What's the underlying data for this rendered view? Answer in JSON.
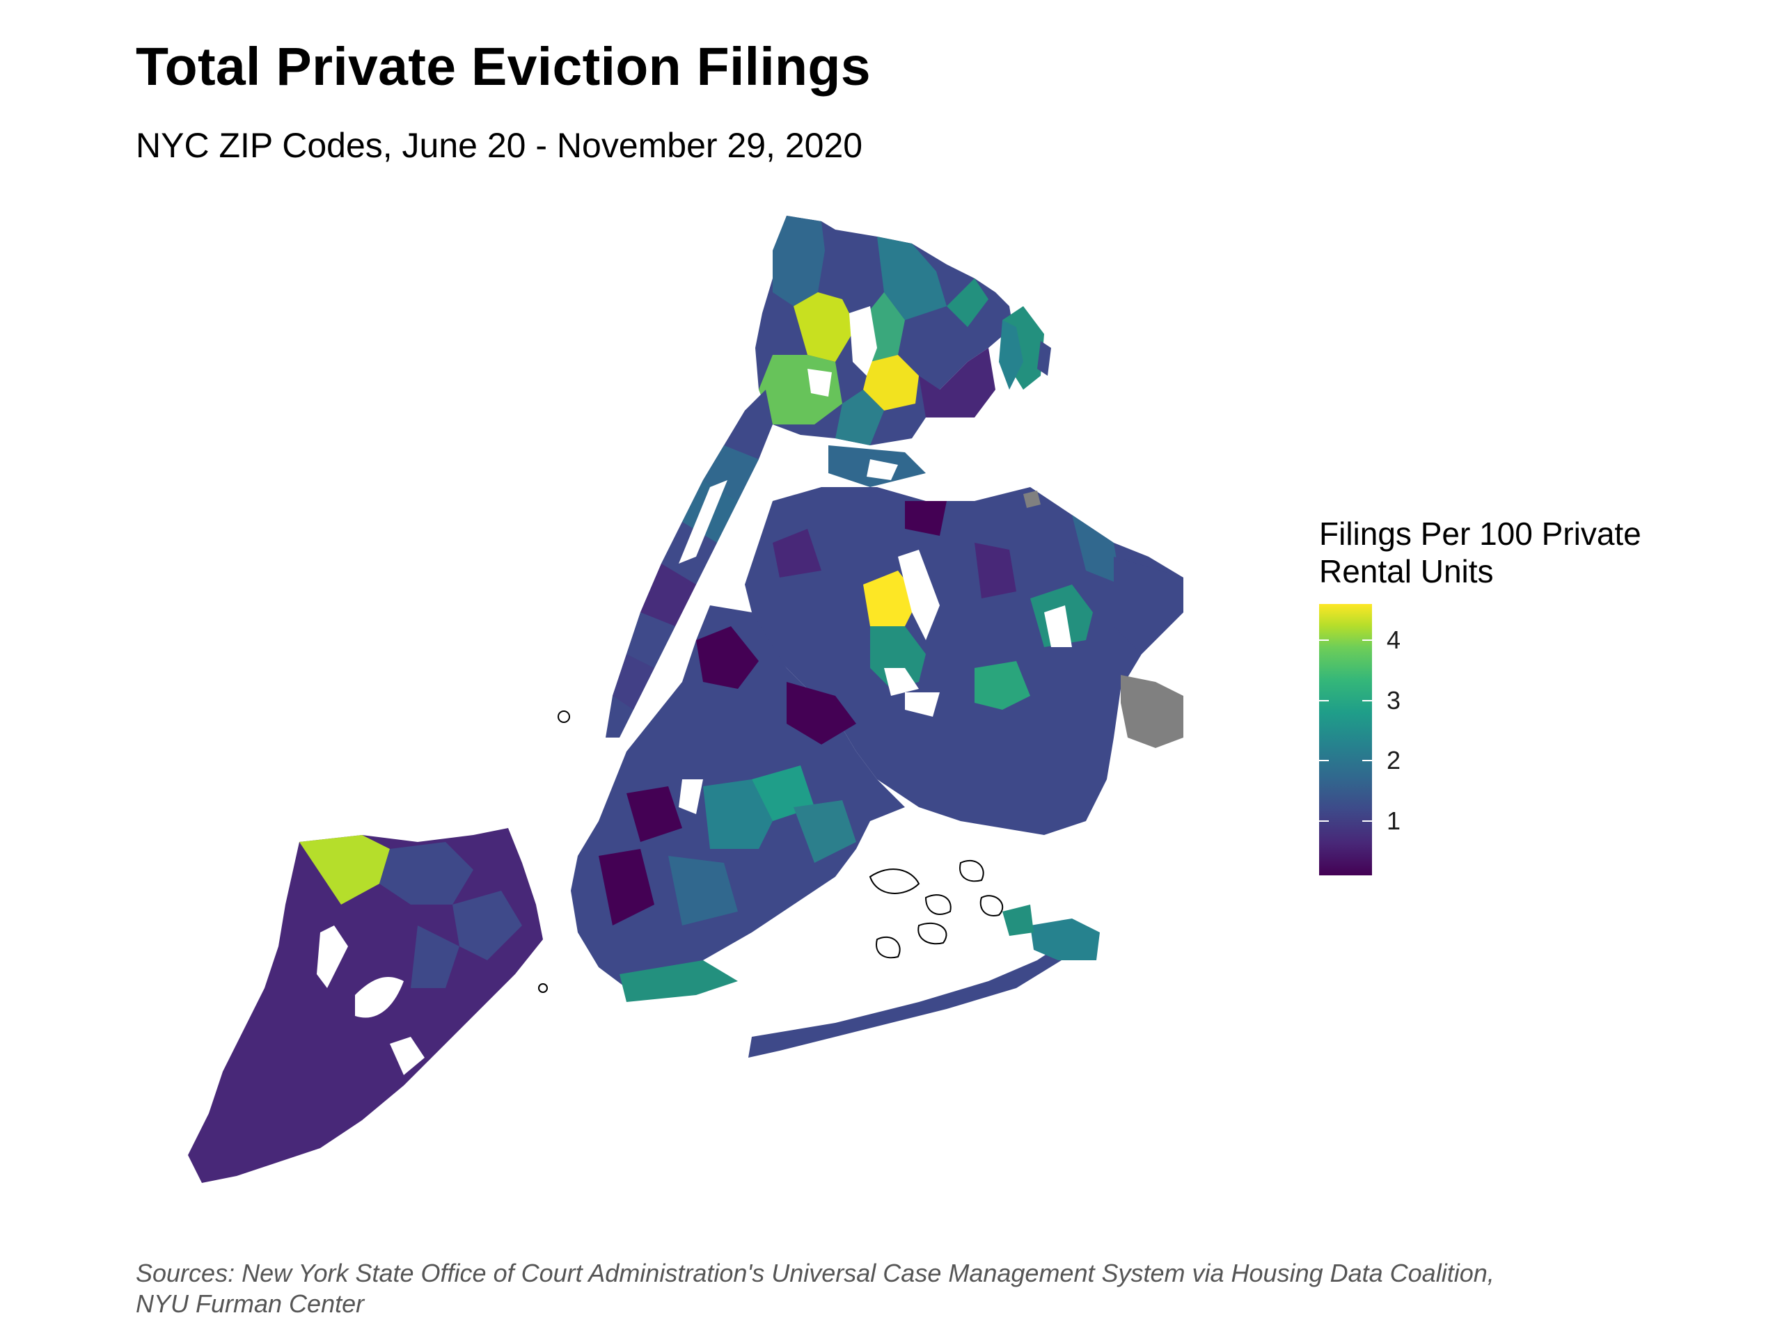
{
  "title": "Total Private Eviction Filings",
  "subtitle": "NYC ZIP Codes, June 20 - November 29, 2020",
  "legend": {
    "title_line1": "Filings Per 100 Private",
    "title_line2": "Rental Units",
    "ticks": [
      "4",
      "3",
      "2",
      "1"
    ],
    "tick_values": [
      4,
      3,
      2,
      1
    ],
    "range": [
      0.1,
      4.6
    ],
    "palette": [
      "#440154",
      "#482878",
      "#3e4989",
      "#31688e",
      "#26828e",
      "#1f9e89",
      "#35b779",
      "#6ece58",
      "#b5de2b",
      "#fde725"
    ],
    "missing_color": "#808080"
  },
  "caption": {
    "line1": "Sources: New York State Office of Court Administration's Universal Case Management System via Housing Data Coalition,",
    "line2": "NYU Furman Center"
  },
  "map": {
    "region": "New York City",
    "unit": "ZIP code",
    "highlights": [
      {
        "area": "North Corona / Jackson Heights, Queens",
        "level": 4.6
      },
      {
        "area": "Northwest Bronx",
        "level": 4.3
      },
      {
        "area": "North Shore, Staten Island",
        "level": 3.8
      },
      {
        "area": "Rockaway, Queens",
        "level": 2.0
      }
    ]
  }
}
